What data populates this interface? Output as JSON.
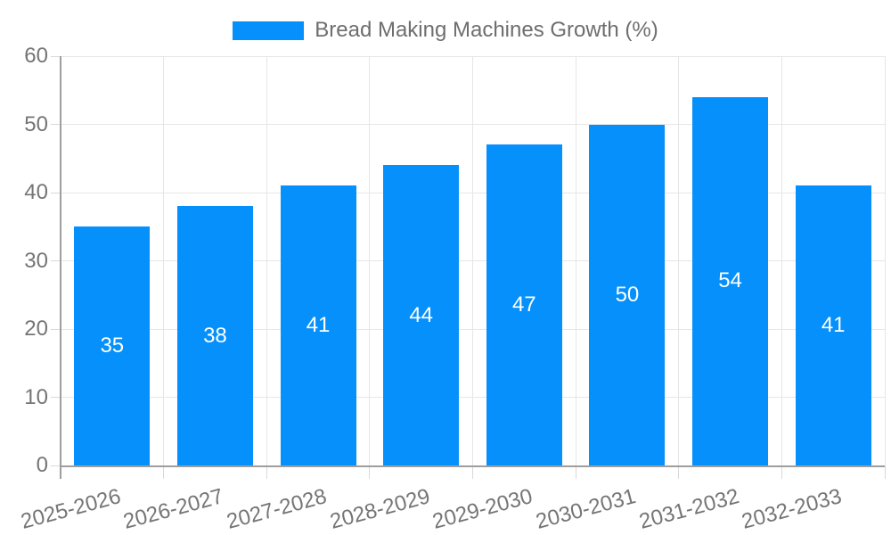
{
  "chart_data": {
    "type": "bar",
    "title": "Bread Making Machines Growth (%)",
    "legend": {
      "label": "Bread Making Machines Growth (%)",
      "position": "top"
    },
    "categories": [
      "2025-2026",
      "2026-2027",
      "2027-2028",
      "2028-2029",
      "2029-2030",
      "2030-2031",
      "2031-2032",
      "2032-2033"
    ],
    "values": [
      35,
      38,
      41,
      44,
      47,
      50,
      54,
      41
    ],
    "xlabel": "",
    "ylabel": "",
    "ylim": [
      0,
      60
    ],
    "yticks": [
      0,
      10,
      20,
      30,
      40,
      50,
      60
    ],
    "grid": true,
    "data_labels": "inside-center",
    "xtick_rotation_deg": -15,
    "colors": {
      "bar": "#0590FB",
      "value_label": "#ffffff",
      "tick_label": "#757575",
      "legend_label": "#6e6e6e",
      "gridline": "#e6e6e6",
      "tick_mark": "#d9d9d9",
      "axis_line": "#9e9e9e",
      "background": "#ffffff"
    }
  }
}
